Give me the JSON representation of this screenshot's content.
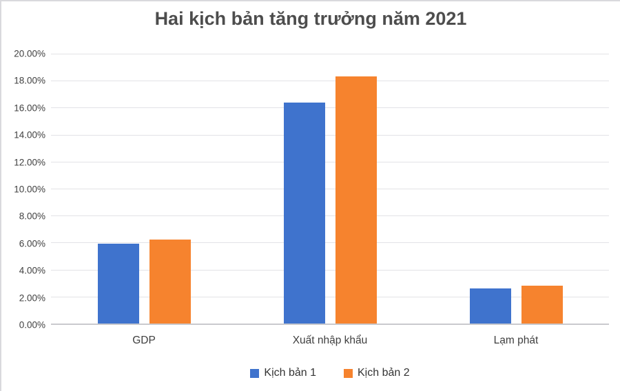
{
  "frame": {
    "background": "#ffffff",
    "border_color": "#d9d9dd"
  },
  "colors": {
    "series1": "#3F73CD",
    "series2": "#F6832E",
    "gridline": "#e2e2e6",
    "axis_line": "#c9c9cd",
    "tick_text": "#404040",
    "title_text": "#4d4d4d"
  },
  "chart_data": {
    "type": "bar",
    "title": "Hai kịch bản tăng trưởng năm 2021",
    "categories": [
      "GDP",
      "Xuất nhập khẩu",
      "Lạm phát"
    ],
    "series": [
      {
        "name": "Kịch bản 1",
        "color": "#3F73CD",
        "values": [
          5.9,
          16.4,
          2.6
        ]
      },
      {
        "name": "Kịch bản 2",
        "color": "#F6832E",
        "values": [
          6.2,
          18.3,
          2.8
        ]
      }
    ],
    "xlabel": "",
    "ylabel": "",
    "ylim": [
      0,
      20
    ],
    "ytick_step": 2,
    "ytick_labels": [
      "0.00%",
      "2.00%",
      "4.00%",
      "6.00%",
      "8.00%",
      "10.00%",
      "12.00%",
      "14.00%",
      "16.00%",
      "18.00%",
      "20.00%"
    ],
    "grid": true,
    "legend_position": "bottom"
  }
}
